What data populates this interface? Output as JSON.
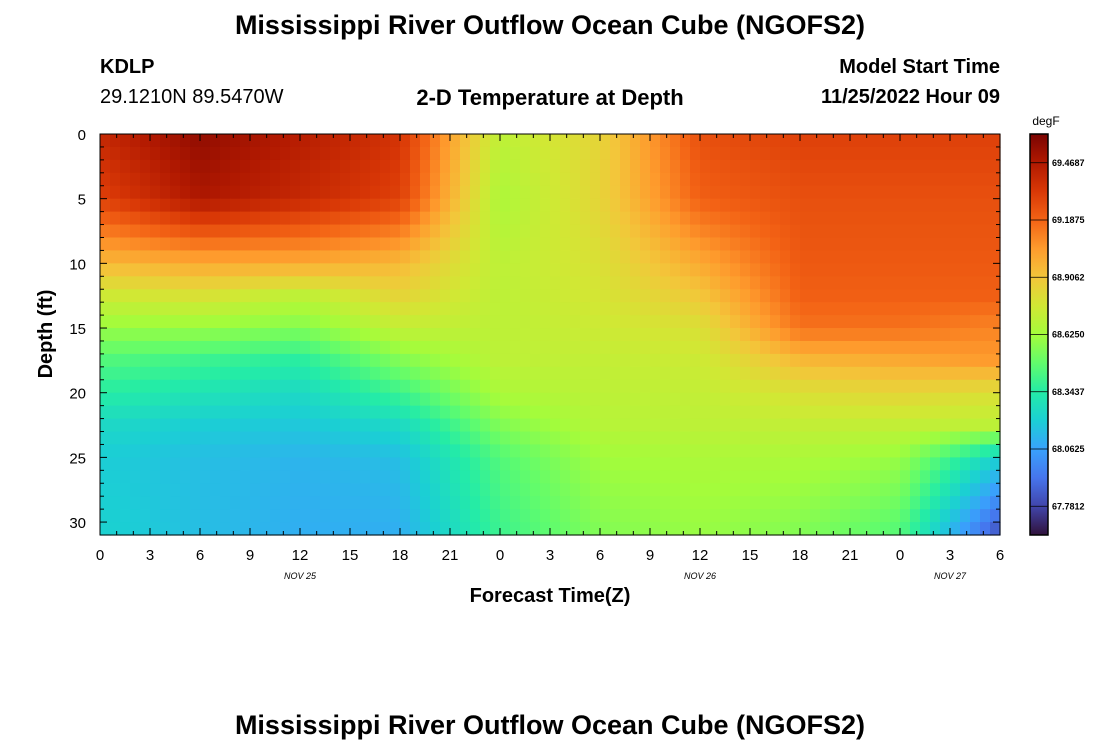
{
  "page": {
    "title": "Mississippi River Outflow Ocean Cube (NGOFS2)",
    "station": "KDLP",
    "coords": "29.1210N  89.5470W",
    "subtitle": "2-D Temperature at Depth",
    "model_start_label": "Model Start Time",
    "model_start_value": "11/25/2022 Hour 09",
    "repeat_title": "Mississippi River Outflow Ocean Cube (NGOFS2)"
  },
  "chart_data": {
    "type": "heatmap",
    "title": "2-D Temperature at Depth",
    "xlabel": "Forecast Time(Z)",
    "ylabel": "Depth (ft)",
    "x_tick_labels": [
      "0",
      "3",
      "6",
      "9",
      "12",
      "15",
      "18",
      "21",
      "0",
      "3",
      "6",
      "9",
      "12",
      "15",
      "18",
      "21",
      "0",
      "3",
      "6"
    ],
    "x_range_hours": [
      0,
      54
    ],
    "date_labels": [
      {
        "label": "NOV 25",
        "hour": 12
      },
      {
        "label": "NOV 26",
        "hour": 36
      },
      {
        "label": "NOV 27",
        "hour": 51
      }
    ],
    "y_range": [
      0,
      31
    ],
    "y_ticks": [
      0,
      5,
      10,
      15,
      20,
      25,
      30
    ],
    "y_inverted": true,
    "colorbar": {
      "unit": "degF",
      "min": 67.64,
      "max": 69.61,
      "tick_labels": [
        "69.4687",
        "69.1875",
        "68.9062",
        "68.6250",
        "68.3437",
        "68.0625",
        "67.7812"
      ],
      "tick_values": [
        69.4687,
        69.1875,
        68.9062,
        68.625,
        68.3437,
        68.0625,
        67.7812
      ]
    },
    "colormap": [
      "#30123b",
      "#4145ab",
      "#4675ed",
      "#39a2fc",
      "#1bcfd4",
      "#24eca6",
      "#61fc6c",
      "#a4fc3b",
      "#d1e834",
      "#f3c63a",
      "#fe9b2d",
      "#f36315",
      "#d93806",
      "#b11901",
      "#7a0402"
    ],
    "grid": {
      "x_hours": [
        0,
        6,
        12,
        18,
        24,
        30,
        36,
        42,
        48,
        54
      ],
      "depths": [
        0,
        5,
        10,
        12.5,
        15,
        17.5,
        20,
        22.5,
        25,
        31
      ],
      "temperature_degF": [
        [
          69.4,
          69.55,
          69.45,
          69.35,
          68.7,
          68.85,
          69.25,
          69.3,
          69.3,
          69.3
        ],
        [
          69.3,
          69.48,
          69.4,
          69.3,
          68.65,
          68.85,
          69.2,
          69.25,
          69.25,
          69.25
        ],
        [
          68.95,
          69.0,
          69.0,
          68.95,
          68.7,
          68.8,
          69.0,
          69.22,
          69.22,
          69.22
        ],
        [
          68.75,
          68.8,
          68.7,
          68.85,
          68.7,
          68.78,
          68.9,
          69.2,
          69.2,
          69.2
        ],
        [
          68.6,
          68.6,
          68.55,
          68.72,
          68.7,
          68.75,
          68.8,
          69.15,
          69.15,
          69.1
        ],
        [
          68.45,
          68.4,
          68.35,
          68.55,
          68.7,
          68.72,
          68.75,
          68.95,
          69.0,
          69.05
        ],
        [
          68.35,
          68.3,
          68.25,
          68.4,
          68.65,
          68.7,
          68.72,
          68.8,
          68.85,
          68.8
        ],
        [
          68.25,
          68.2,
          68.18,
          68.25,
          68.55,
          68.68,
          68.7,
          68.72,
          68.72,
          68.7
        ],
        [
          68.2,
          68.15,
          68.12,
          68.15,
          68.45,
          68.62,
          68.65,
          68.65,
          68.6,
          68.2
        ],
        [
          68.22,
          68.15,
          68.1,
          68.1,
          68.4,
          68.55,
          68.6,
          68.55,
          68.45,
          67.8
        ]
      ]
    }
  }
}
